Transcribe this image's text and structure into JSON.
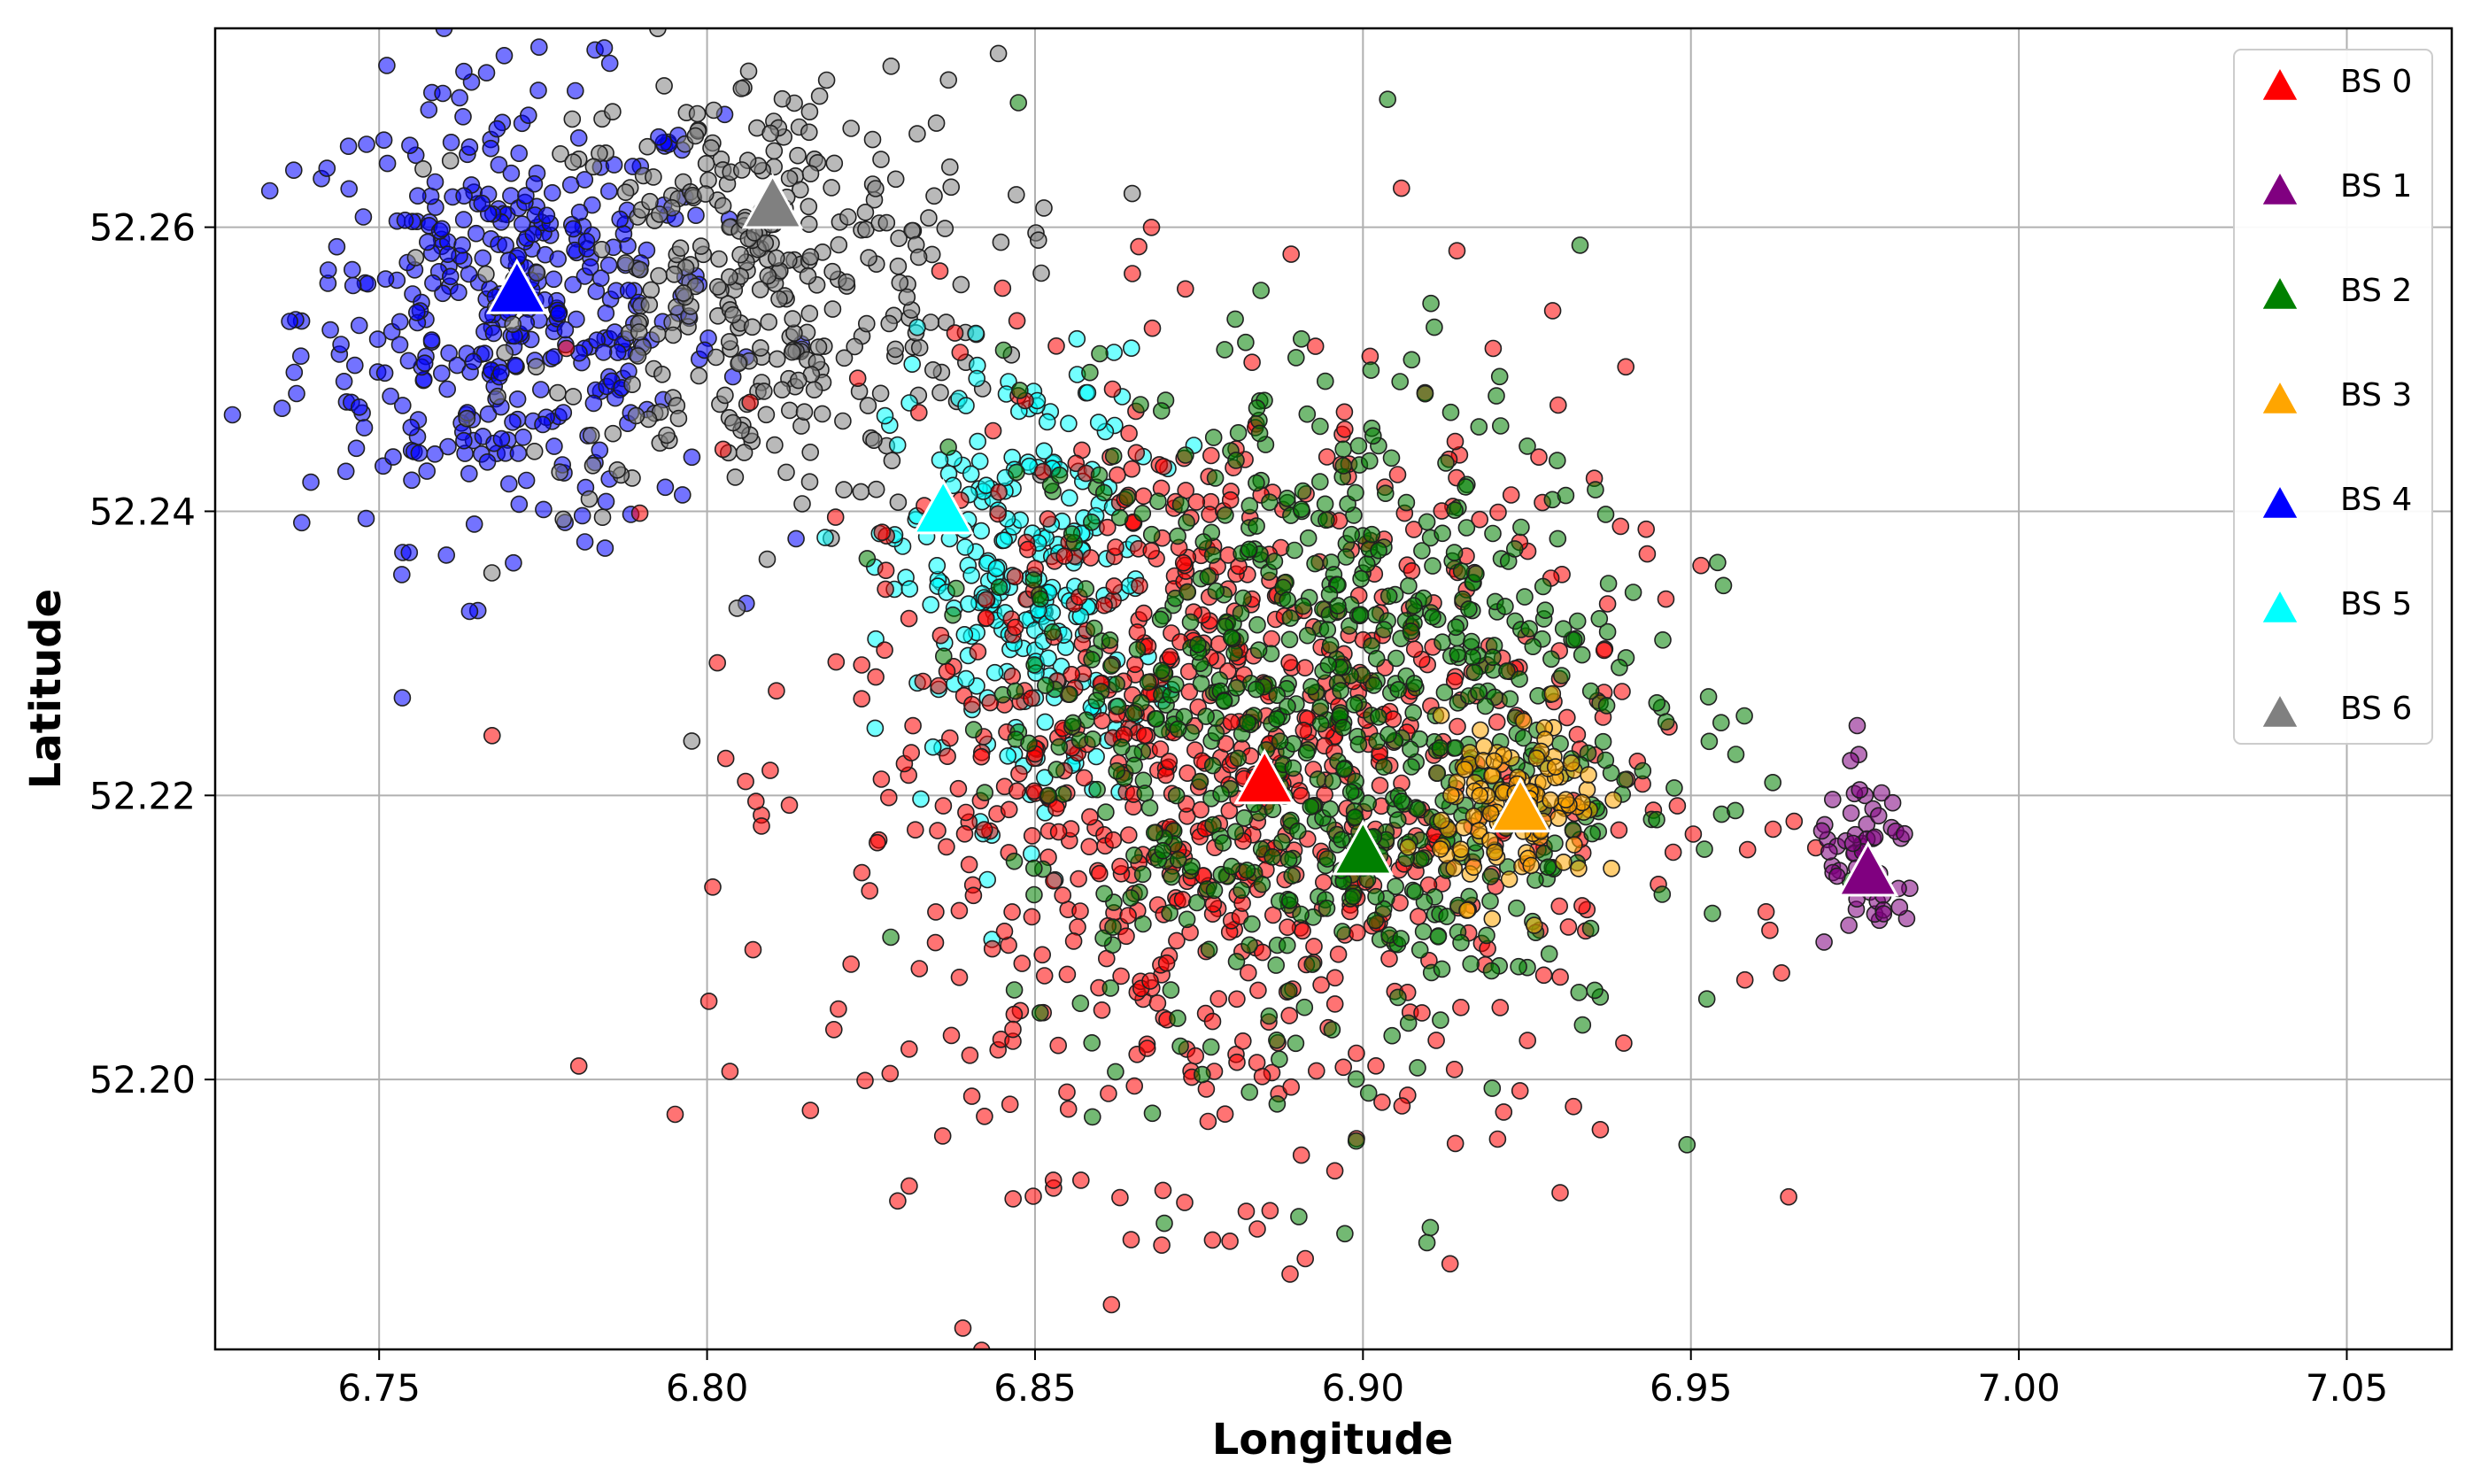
{
  "chart_data": {
    "type": "scatter",
    "xlabel": "Longitude",
    "ylabel": "Latitude",
    "xlim": [
      6.725,
      7.066
    ],
    "ylim": [
      52.181,
      52.274
    ],
    "xticks": [
      "6.75",
      "6.80",
      "6.85",
      "6.90",
      "6.95",
      "7.00",
      "7.05"
    ],
    "xtick_values": [
      6.75,
      6.8,
      6.85,
      6.9,
      6.95,
      7.0,
      7.05
    ],
    "yticks": [
      "52.20",
      "52.22",
      "52.24",
      "52.26"
    ],
    "ytick_values": [
      52.2,
      52.22,
      52.24,
      52.26
    ],
    "grid": true,
    "legend_position": "top-right",
    "series": [
      {
        "name": "BS 0",
        "color": "#ff0000",
        "x": [
          6.885
        ],
        "y": [
          52.221
        ]
      },
      {
        "name": "BS 1",
        "color": "#800080",
        "x": [
          6.977
        ],
        "y": [
          52.2145
        ]
      },
      {
        "name": "BS 2",
        "color": "#008000",
        "x": [
          6.9
        ],
        "y": [
          52.216
        ]
      },
      {
        "name": "BS 3",
        "color": "#ffa500",
        "x": [
          6.924
        ],
        "y": [
          52.219
        ]
      },
      {
        "name": "BS 4",
        "color": "#0000ff",
        "x": [
          6.771
        ],
        "y": [
          52.2555
        ]
      },
      {
        "name": "BS 5",
        "color": "#00ffff",
        "x": [
          6.836
        ],
        "y": [
          52.24
        ]
      },
      {
        "name": "BS 6",
        "color": "#808080",
        "x": [
          6.81
        ],
        "y": [
          52.2615
        ]
      }
    ],
    "user_clusters": [
      {
        "series": "BS 4",
        "color": "#0000ff",
        "center": [
          6.77,
          52.254
        ],
        "spread": [
          0.016,
          0.008
        ],
        "count": 420
      },
      {
        "series": "BS 6",
        "color": "#808080",
        "center": [
          6.808,
          52.256
        ],
        "spread": [
          0.018,
          0.008
        ],
        "count": 360
      },
      {
        "series": "BS 5",
        "color": "#00ffff",
        "center": [
          6.848,
          52.235
        ],
        "spread": [
          0.01,
          0.008
        ],
        "count": 260
      },
      {
        "series": "BS 0",
        "color": "#ff0000",
        "center": [
          6.88,
          52.222
        ],
        "spread": [
          0.03,
          0.014
        ],
        "count": 900
      },
      {
        "series": "BS 2",
        "color": "#008000",
        "center": [
          6.895,
          52.226
        ],
        "spread": [
          0.024,
          0.012
        ],
        "count": 760
      },
      {
        "series": "BS 3",
        "color": "#ffa500",
        "center": [
          6.924,
          52.219
        ],
        "spread": [
          0.006,
          0.003
        ],
        "count": 120
      },
      {
        "series": "BS 1",
        "color": "#800080",
        "center": [
          6.977,
          52.215
        ],
        "spread": [
          0.004,
          0.003
        ],
        "count": 60
      }
    ]
  }
}
